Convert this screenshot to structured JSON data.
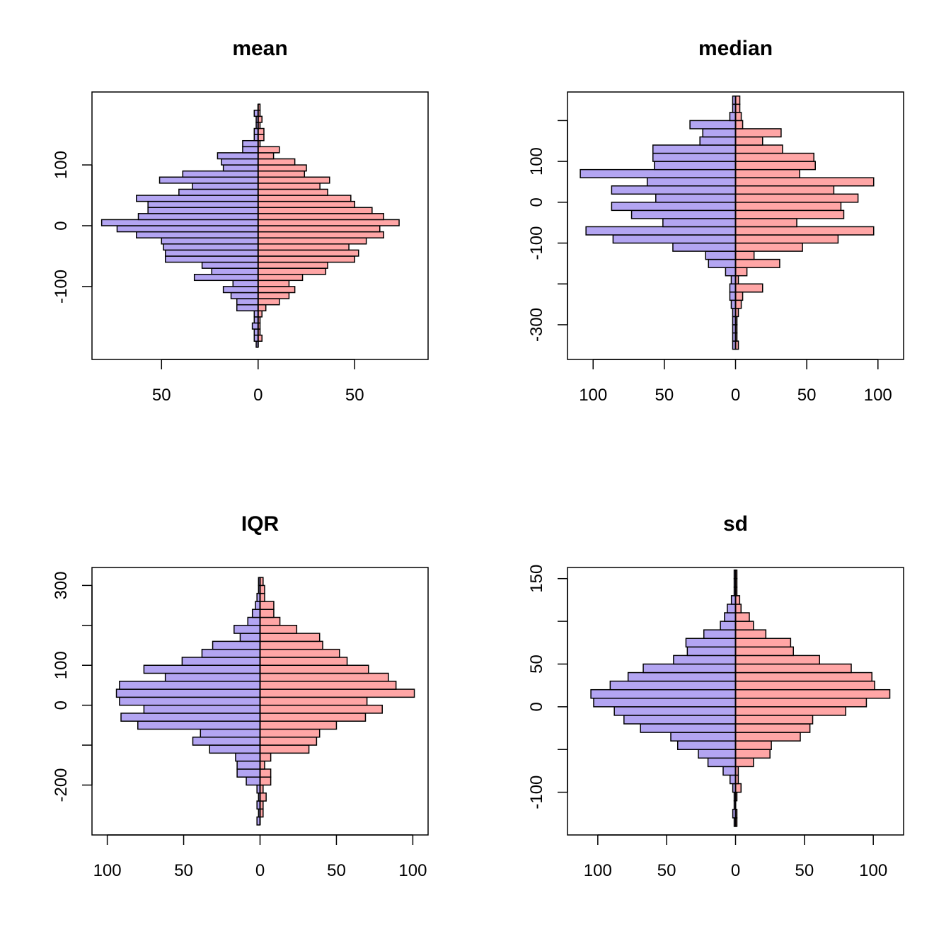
{
  "colors": {
    "left": "#B3A5F2",
    "right": "#FFA6A6",
    "stroke": "#000000"
  },
  "chart_data": [
    {
      "type": "bar",
      "orientation": "horizontal-back-to-back",
      "title": "mean",
      "grid": false,
      "xlim": [
        -86,
        88
      ],
      "ylim": [
        -220,
        220
      ],
      "xticks": [
        -50,
        0,
        50
      ],
      "xtick_labels": [
        "50",
        "0",
        "50"
      ],
      "yticks": [
        -100,
        0,
        100
      ],
      "ytick_labels": [
        "-100",
        "0",
        "100"
      ],
      "bin_width": 10,
      "bins": [
        [
          -200,
          -190
        ],
        [
          -190,
          -180
        ],
        [
          -180,
          -170
        ],
        [
          -170,
          -160
        ],
        [
          -160,
          -150
        ],
        [
          -150,
          -140
        ],
        [
          -140,
          -130
        ],
        [
          -130,
          -120
        ],
        [
          -120,
          -110
        ],
        [
          -110,
          -100
        ],
        [
          -100,
          -90
        ],
        [
          -90,
          -80
        ],
        [
          -80,
          -70
        ],
        [
          -70,
          -60
        ],
        [
          -60,
          -50
        ],
        [
          -50,
          -40
        ],
        [
          -40,
          -30
        ],
        [
          -30,
          -20
        ],
        [
          -20,
          -10
        ],
        [
          -10,
          0
        ],
        [
          0,
          10
        ],
        [
          10,
          20
        ],
        [
          20,
          30
        ],
        [
          30,
          40
        ],
        [
          40,
          50
        ],
        [
          50,
          60
        ],
        [
          60,
          70
        ],
        [
          70,
          80
        ],
        [
          80,
          90
        ],
        [
          90,
          100
        ],
        [
          100,
          110
        ],
        [
          110,
          120
        ],
        [
          120,
          130
        ],
        [
          130,
          140
        ],
        [
          140,
          150
        ],
        [
          150,
          160
        ],
        [
          160,
          170
        ],
        [
          170,
          180
        ],
        [
          180,
          190
        ],
        [
          190,
          200
        ]
      ],
      "series": [
        {
          "side": "left",
          "values": [
            1,
            2,
            2,
            3,
            2,
            2,
            11,
            11,
            14,
            18,
            13,
            33,
            24,
            29,
            48,
            48,
            49,
            50,
            63,
            73,
            81,
            62,
            57,
            57,
            63,
            41,
            34,
            51,
            39,
            18,
            19,
            21,
            8,
            8,
            2,
            2,
            1,
            1,
            2,
            0
          ]
        },
        {
          "side": "right",
          "values": [
            0,
            2,
            1,
            1,
            1,
            2,
            4,
            11,
            16,
            19,
            16,
            23,
            35,
            36,
            50,
            52,
            47,
            56,
            65,
            63,
            73,
            65,
            59,
            50,
            48,
            36,
            32,
            37,
            24,
            25,
            19,
            8,
            11,
            1,
            3,
            3,
            1,
            2,
            1,
            1
          ]
        }
      ]
    },
    {
      "type": "bar",
      "orientation": "horizontal-back-to-back",
      "title": "median",
      "grid": false,
      "xlim": [
        -118,
        118
      ],
      "ylim": [
        -385,
        270
      ],
      "xticks": [
        -100,
        -50,
        0,
        50,
        100
      ],
      "xtick_labels": [
        "100",
        "50",
        "0",
        "50",
        "100"
      ],
      "yticks": [
        -300,
        -200,
        -100,
        0,
        100,
        200
      ],
      "ytick_labels": [
        "-300",
        "",
        "-100",
        "0",
        "100",
        ""
      ],
      "bin_width": 20,
      "bins": [
        [
          -360,
          -340
        ],
        [
          -340,
          -320
        ],
        [
          -320,
          -300
        ],
        [
          -300,
          -280
        ],
        [
          -280,
          -260
        ],
        [
          -260,
          -240
        ],
        [
          -240,
          -220
        ],
        [
          -220,
          -200
        ],
        [
          -200,
          -180
        ],
        [
          -180,
          -160
        ],
        [
          -160,
          -140
        ],
        [
          -140,
          -120
        ],
        [
          -120,
          -100
        ],
        [
          -100,
          -80
        ],
        [
          -80,
          -60
        ],
        [
          -60,
          -40
        ],
        [
          -40,
          -20
        ],
        [
          -20,
          0
        ],
        [
          0,
          20
        ],
        [
          20,
          40
        ],
        [
          40,
          60
        ],
        [
          60,
          80
        ],
        [
          80,
          100
        ],
        [
          100,
          120
        ],
        [
          120,
          140
        ],
        [
          140,
          160
        ],
        [
          160,
          180
        ],
        [
          180,
          200
        ],
        [
          200,
          220
        ],
        [
          220,
          240
        ],
        [
          240,
          260
        ]
      ],
      "series": [
        {
          "side": "left",
          "values": [
            2,
            2,
            2,
            2,
            2,
            3,
            4,
            4,
            3,
            7,
            19,
            21,
            44,
            86,
            105,
            51,
            73,
            87,
            56,
            87,
            62,
            109,
            57,
            58,
            58,
            25,
            23,
            32,
            4,
            2,
            2
          ]
        },
        {
          "side": "right",
          "values": [
            2,
            1,
            1,
            1,
            2,
            4,
            5,
            19,
            2,
            8,
            31,
            13,
            47,
            72,
            97,
            43,
            76,
            74,
            86,
            69,
            97,
            45,
            56,
            55,
            33,
            19,
            32,
            5,
            4,
            3,
            3
          ]
        }
      ]
    },
    {
      "type": "bar",
      "orientation": "horizontal-back-to-back",
      "title": "IQR",
      "grid": false,
      "xlim": [
        -110,
        110
      ],
      "ylim": [
        -325,
        345
      ],
      "xticks": [
        -100,
        -50,
        0,
        50,
        100
      ],
      "xtick_labels": [
        "100",
        "50",
        "0",
        "50",
        "100"
      ],
      "yticks": [
        -200,
        -100,
        0,
        100,
        200,
        300
      ],
      "ytick_labels": [
        "-200",
        "",
        "0",
        "100",
        "",
        "300"
      ],
      "bin_width": 20,
      "bins": [
        [
          -300,
          -280
        ],
        [
          -280,
          -260
        ],
        [
          -260,
          -240
        ],
        [
          -240,
          -220
        ],
        [
          -220,
          -200
        ],
        [
          -200,
          -180
        ],
        [
          -180,
          -160
        ],
        [
          -160,
          -140
        ],
        [
          -140,
          -120
        ],
        [
          -120,
          -100
        ],
        [
          -100,
          -80
        ],
        [
          -80,
          -60
        ],
        [
          -60,
          -40
        ],
        [
          -40,
          -20
        ],
        [
          -20,
          0
        ],
        [
          0,
          20
        ],
        [
          20,
          40
        ],
        [
          40,
          60
        ],
        [
          60,
          80
        ],
        [
          80,
          100
        ],
        [
          100,
          120
        ],
        [
          120,
          140
        ],
        [
          140,
          160
        ],
        [
          160,
          180
        ],
        [
          180,
          200
        ],
        [
          200,
          220
        ],
        [
          220,
          240
        ],
        [
          240,
          260
        ],
        [
          260,
          280
        ],
        [
          280,
          300
        ],
        [
          300,
          320
        ]
      ],
      "series": [
        {
          "side": "left",
          "values": [
            2,
            1,
            2,
            1,
            2,
            9,
            15,
            15,
            16,
            33,
            44,
            39,
            80,
            91,
            76,
            92,
            94,
            92,
            62,
            76,
            51,
            38,
            31,
            13,
            17,
            8,
            5,
            3,
            2,
            1,
            1
          ]
        },
        {
          "side": "right",
          "values": [
            0,
            2,
            2,
            4,
            2,
            7,
            7,
            3,
            7,
            32,
            37,
            39,
            50,
            69,
            80,
            70,
            101,
            89,
            84,
            71,
            57,
            52,
            41,
            39,
            24,
            13,
            9,
            9,
            3,
            3,
            2
          ]
        }
      ]
    },
    {
      "type": "bar",
      "orientation": "horizontal-back-to-back",
      "title": "sd",
      "grid": false,
      "xlim": [
        -122,
        122
      ],
      "ylim": [
        -150,
        163
      ],
      "xticks": [
        -100,
        -50,
        0,
        50,
        100
      ],
      "xtick_labels": [
        "100",
        "50",
        "0",
        "50",
        "100"
      ],
      "yticks": [
        -100,
        -50,
        0,
        50,
        100,
        150
      ],
      "ytick_labels": [
        "-100",
        "",
        "0",
        "50",
        "",
        "150"
      ],
      "bin_width": 10,
      "bins": [
        [
          -140,
          -130
        ],
        [
          -130,
          -120
        ],
        [
          -120,
          -110
        ],
        [
          -110,
          -100
        ],
        [
          -100,
          -90
        ],
        [
          -90,
          -80
        ],
        [
          -80,
          -70
        ],
        [
          -70,
          -60
        ],
        [
          -60,
          -50
        ],
        [
          -50,
          -40
        ],
        [
          -40,
          -30
        ],
        [
          -30,
          -20
        ],
        [
          -20,
          -10
        ],
        [
          -10,
          0
        ],
        [
          0,
          10
        ],
        [
          10,
          20
        ],
        [
          20,
          30
        ],
        [
          30,
          40
        ],
        [
          40,
          50
        ],
        [
          50,
          60
        ],
        [
          60,
          70
        ],
        [
          70,
          80
        ],
        [
          80,
          90
        ],
        [
          90,
          100
        ],
        [
          100,
          110
        ],
        [
          110,
          120
        ],
        [
          120,
          130
        ],
        [
          130,
          140
        ],
        [
          140,
          150
        ],
        [
          150,
          160
        ]
      ],
      "series": [
        {
          "side": "left",
          "values": [
            1,
            2,
            1,
            1,
            2,
            4,
            9,
            20,
            27,
            42,
            47,
            69,
            81,
            88,
            103,
            105,
            91,
            78,
            67,
            45,
            35,
            36,
            23,
            11,
            8,
            6,
            3,
            1,
            1,
            1
          ]
        },
        {
          "side": "right",
          "values": [
            1,
            1,
            0,
            1,
            4,
            2,
            2,
            13,
            25,
            26,
            47,
            54,
            56,
            80,
            95,
            112,
            101,
            99,
            84,
            61,
            42,
            40,
            22,
            13,
            10,
            4,
            3,
            1,
            1,
            1
          ]
        }
      ]
    }
  ]
}
